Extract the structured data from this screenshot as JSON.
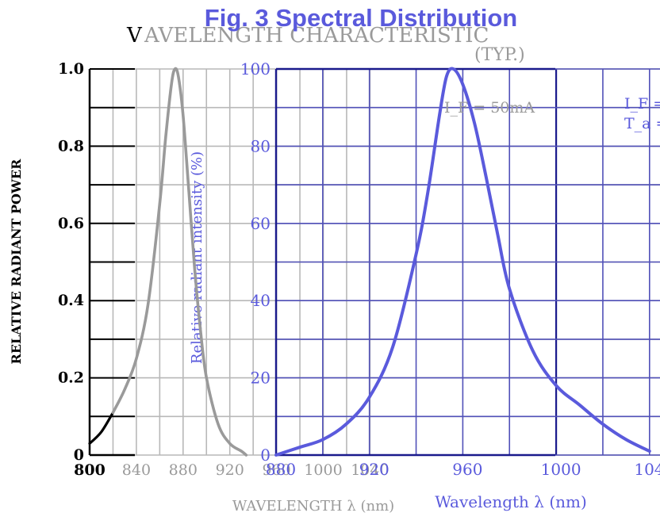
{
  "chart_data": [
    {
      "type": "line",
      "title": "WAVELENGTH CHARACTERISTIC",
      "subtitle": "(TYP.)",
      "xlabel": "WAVELENGTH λ (nm)",
      "ylabel": "RELATIVE RADIANT POWER",
      "xlim": [
        800,
        1040
      ],
      "ylim": [
        0,
        1.0
      ],
      "x_ticks": [
        "800",
        "840",
        "880",
        "920",
        "960",
        "1000",
        "1040"
      ],
      "y_ticks": [
        "0",
        "0.2",
        "0.4",
        "0.6",
        "0.8",
        "1.0"
      ],
      "grid": true,
      "series": [
        {
          "name": "relative radiant power",
          "x": [
            800,
            810,
            820,
            830,
            840,
            850,
            860,
            865,
            870,
            873,
            876,
            880,
            885,
            890,
            895,
            900,
            910,
            920,
            930,
            934
          ],
          "y": [
            0.03,
            0.06,
            0.11,
            0.17,
            0.25,
            0.39,
            0.65,
            0.82,
            0.96,
            1.0,
            0.98,
            0.88,
            0.68,
            0.48,
            0.32,
            0.2,
            0.08,
            0.03,
            0.01,
            0.0
          ]
        }
      ]
    },
    {
      "type": "line",
      "title": "Fig. 3 Spectral Distribution",
      "xlabel": "Wavelength λ (nm)",
      "ylabel": "Relative radiant intensity (%)",
      "xlim": [
        880,
        1040
      ],
      "ylim": [
        0,
        100
      ],
      "x_ticks": [
        "880",
        "920",
        "960",
        "1000",
        "1040"
      ],
      "y_ticks": [
        "0",
        "20",
        "40",
        "60",
        "80",
        "100"
      ],
      "grid": true,
      "annotation": "I_F = 50mA",
      "conditions": [
        "I_F =",
        "T_a ="
      ],
      "series": [
        {
          "name": "relative radiant intensity",
          "x": [
            880,
            890,
            900,
            910,
            920,
            930,
            940,
            945,
            950,
            953,
            956,
            960,
            965,
            970,
            975,
            980,
            990,
            1000,
            1010,
            1020,
            1030,
            1040
          ],
          "y": [
            0,
            2,
            4,
            8,
            15,
            28,
            52,
            68,
            88,
            98,
            100,
            96,
            86,
            72,
            57,
            43,
            27,
            18,
            13,
            8,
            4,
            1
          ]
        }
      ]
    }
  ],
  "colors": {
    "gray_curve": "#9a9a9a",
    "black_curve": "#000000",
    "blue": "#5a5adc",
    "grid_gray": "#b8b8b8",
    "text_gray": "#9a9a9a"
  }
}
